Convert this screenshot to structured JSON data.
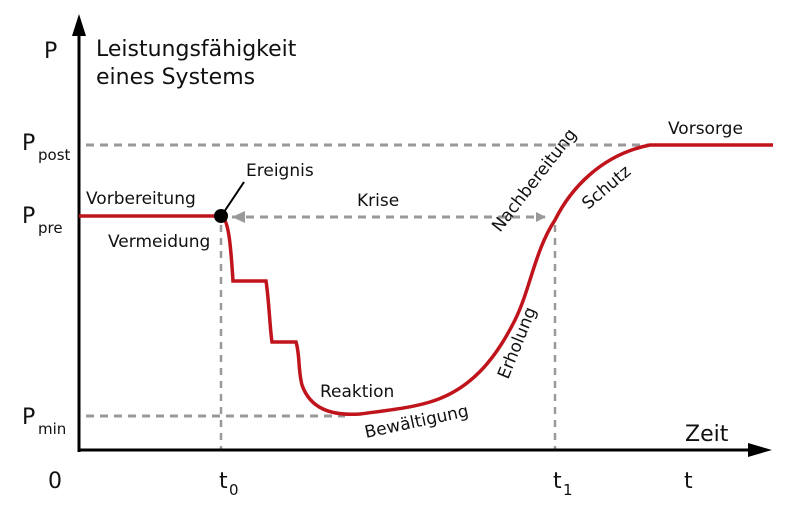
{
  "axis": {
    "y_symbol": "P",
    "y_title_line1": "Leistungsfähigkeit",
    "y_title_line2": "eines Systems",
    "x_title": "Zeit",
    "x_symbol": "t",
    "origin": "0"
  },
  "levels": {
    "p_post": {
      "main": "P",
      "sub": "post"
    },
    "p_pre": {
      "main": "P",
      "sub": "pre"
    },
    "p_min": {
      "main": "P",
      "sub": "min"
    }
  },
  "times": {
    "t0": {
      "main": "t",
      "sub": "0"
    },
    "t1": {
      "main": "t",
      "sub": "1"
    }
  },
  "phases": {
    "vorbereitung": "Vorbereitung",
    "vermeidung": "Vermeidung",
    "ereignis": "Ereignis",
    "krise": "Krise",
    "reaktion": "Reaktion",
    "bewaeltigung": "Bewältigung",
    "erholung": "Erholung",
    "nachbereitung": "Nachbereitung",
    "schutz": "Schutz",
    "vorsorge": "Vorsorge"
  },
  "colors": {
    "curve": "#c0141c",
    "guide": "#999999",
    "axis": "#000000"
  }
}
